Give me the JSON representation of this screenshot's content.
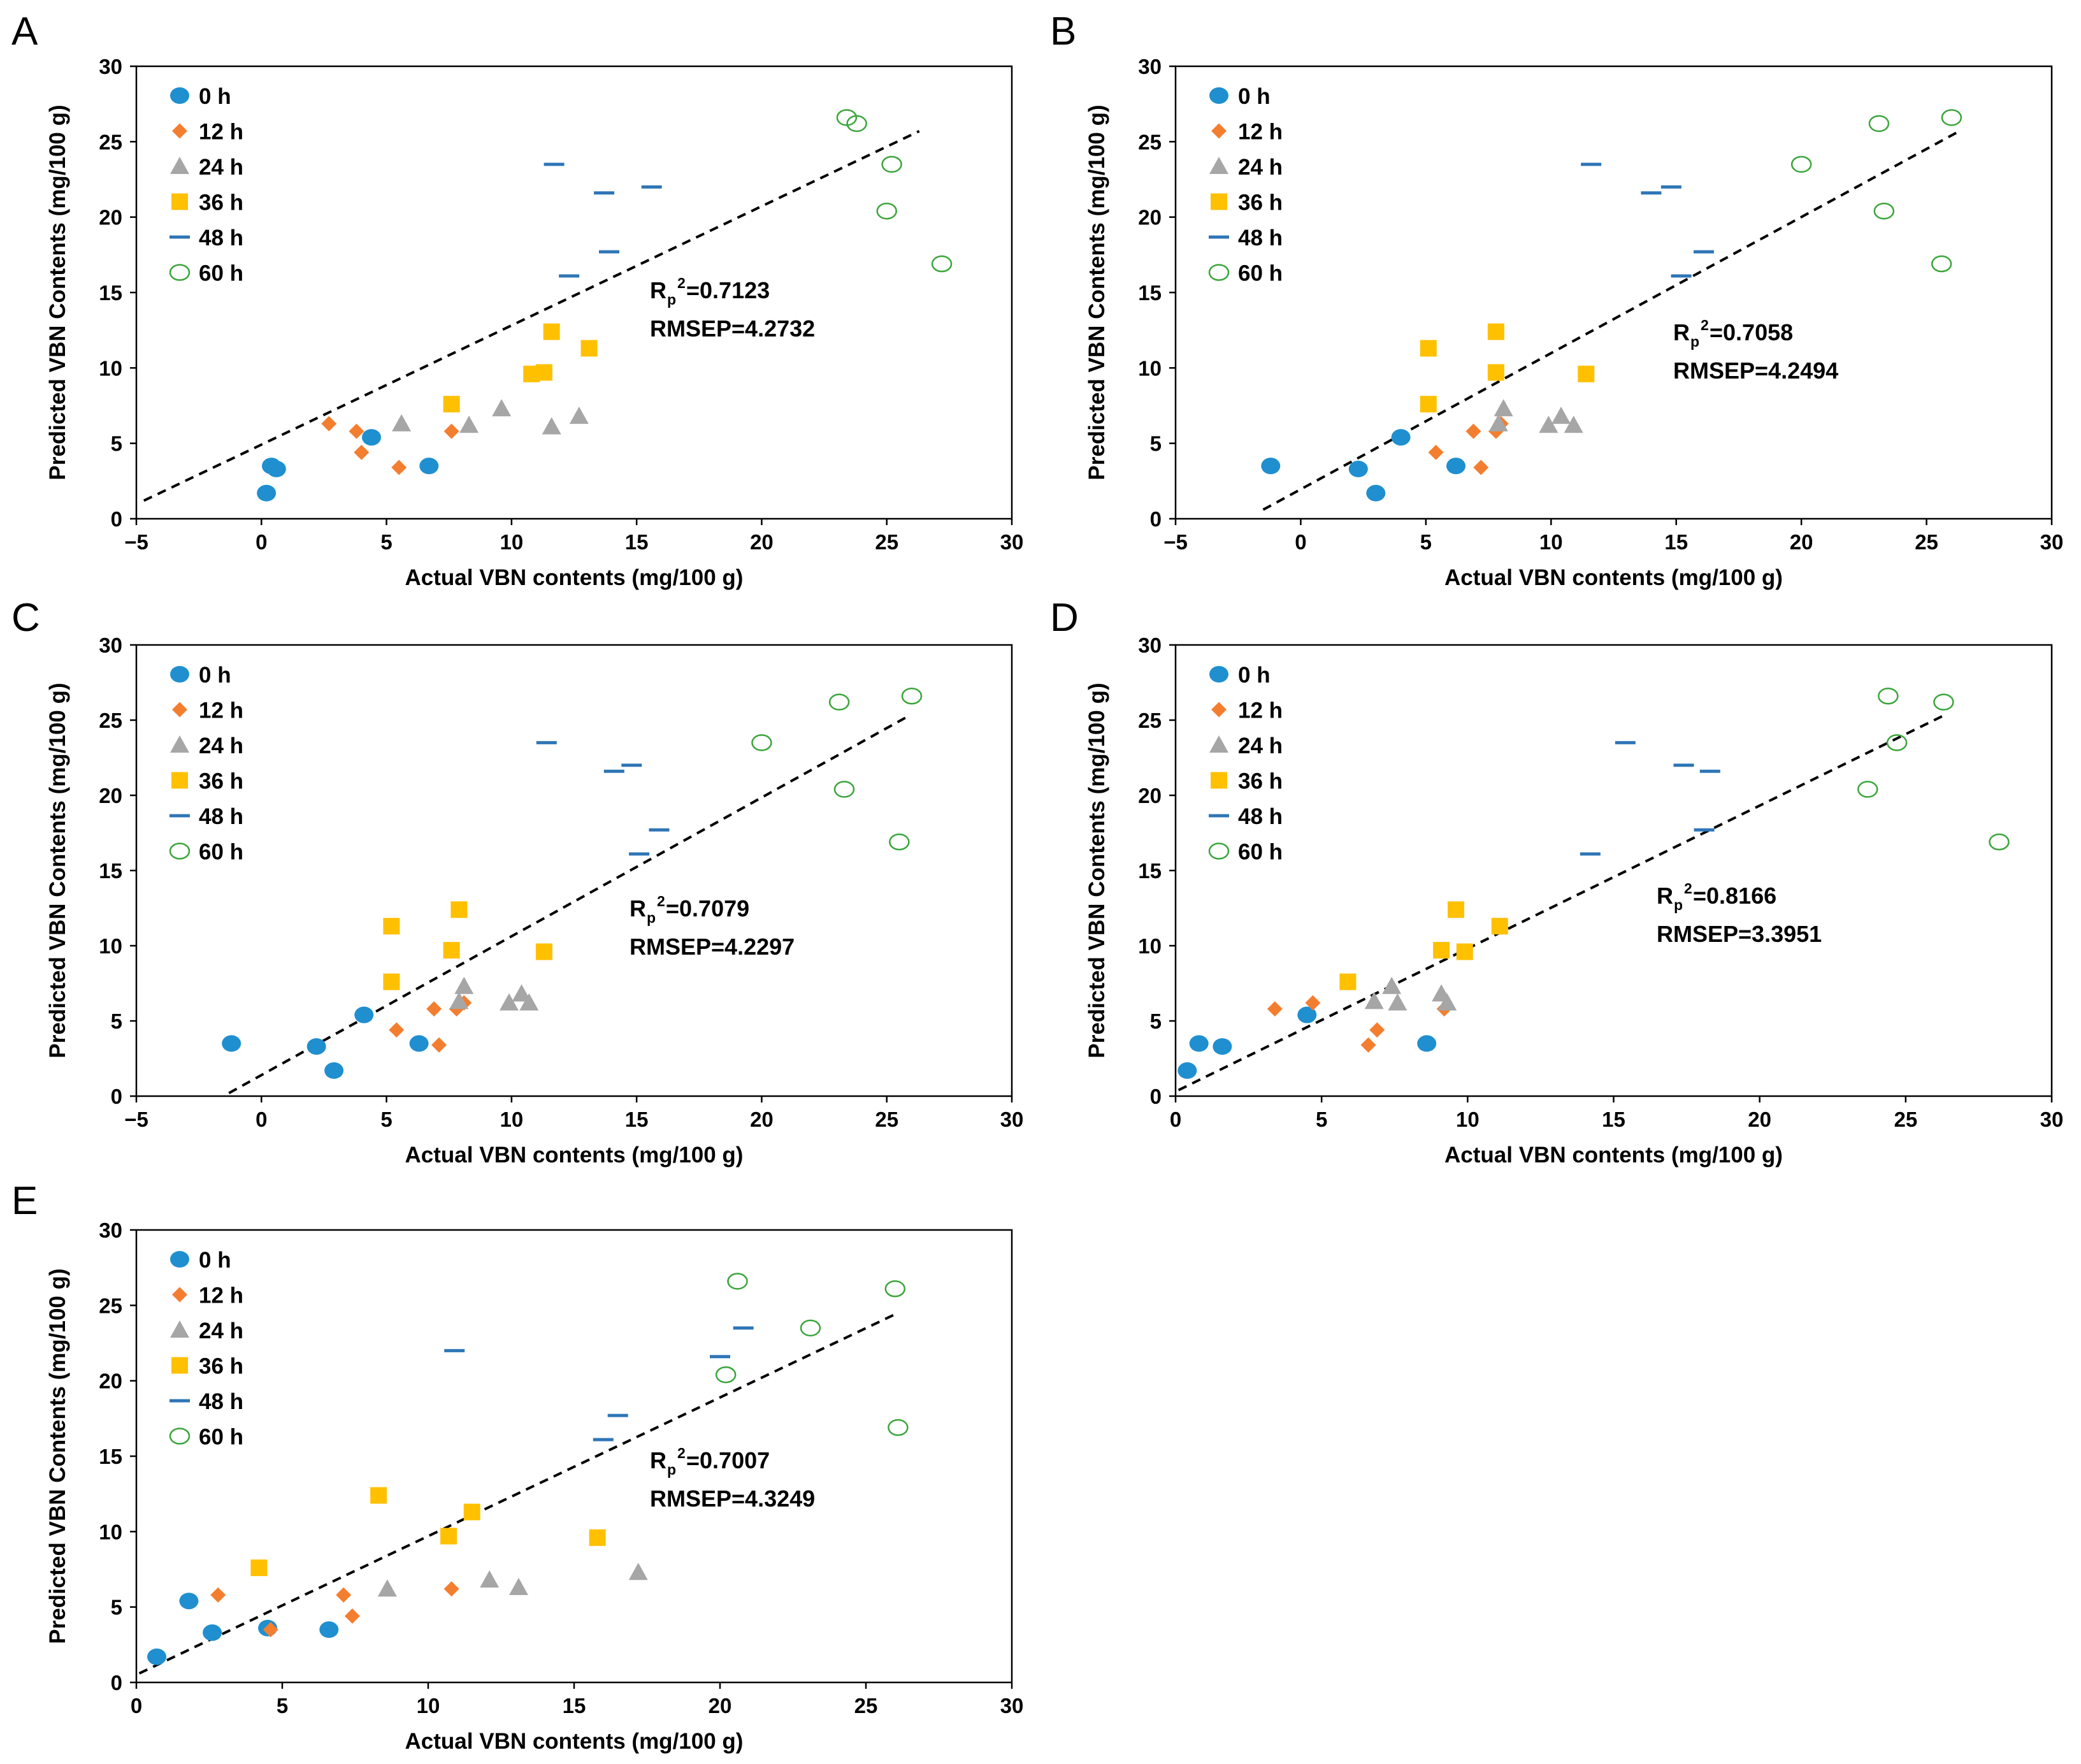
{
  "figure": {
    "colors": {
      "0 h": "#1f8fd0",
      "12 h": "#f47e30",
      "24 h": "#a6a6a6",
      "36 h": "#ffc000",
      "48 h": "#2e75b6",
      "60 h": "#3aa53a",
      "trend": "#000000",
      "axis": "#000000"
    }
  },
  "chart_data": [
    {
      "panel": "A",
      "type": "scatter",
      "xlabel": "Actual VBN contents (mg/100 g)",
      "ylabel": "Predicted VBN Contents (mg/100 g)",
      "xlim": [
        -5,
        30
      ],
      "ylim": [
        0,
        30
      ],
      "xticks": [
        "−5",
        "0",
        "5",
        "10",
        "15",
        "20",
        "25",
        "30"
      ],
      "yticks": [
        "0",
        "5",
        "10",
        "15",
        "20",
        "25",
        "30"
      ],
      "stats": {
        "r_main": "R",
        "r_sub": "p",
        "r_sup": "2",
        "r_value": "=0.7123",
        "rmsep": "RMSEP=4.2732"
      },
      "trendline": {
        "x": [
          -4.7,
          26.3
        ],
        "y": [
          1.2,
          25.7
        ]
      },
      "series": [
        {
          "name": "0 h",
          "marker": "circle",
          "points": [
            [
              0.2,
              1.7
            ],
            [
              0.4,
              3.5
            ],
            [
              0.6,
              3.3
            ],
            [
              4.4,
              5.4
            ],
            [
              6.7,
              3.5
            ]
          ]
        },
        {
          "name": "12 h",
          "marker": "diamond",
          "points": [
            [
              2.7,
              6.3
            ],
            [
              3.8,
              5.8
            ],
            [
              4.0,
              4.4
            ],
            [
              5.5,
              3.4
            ],
            [
              7.6,
              5.8
            ]
          ]
        },
        {
          "name": "24 h",
          "marker": "triangle",
          "points": [
            [
              5.6,
              6.3
            ],
            [
              8.3,
              6.2
            ],
            [
              9.6,
              7.3
            ],
            [
              11.6,
              6.1
            ],
            [
              12.7,
              6.8
            ]
          ]
        },
        {
          "name": "36 h",
          "marker": "square",
          "points": [
            [
              7.6,
              7.6
            ],
            [
              10.8,
              9.6
            ],
            [
              11.3,
              9.7
            ],
            [
              11.6,
              12.4
            ],
            [
              13.1,
              11.3
            ]
          ]
        },
        {
          "name": "48 h",
          "marker": "dash",
          "points": [
            [
              11.7,
              23.5
            ],
            [
              13.7,
              21.6
            ],
            [
              15.6,
              22.0
            ],
            [
              13.9,
              17.7
            ],
            [
              12.3,
              16.1
            ]
          ]
        },
        {
          "name": "60 h",
          "marker": "open-circle",
          "points": [
            [
              23.4,
              26.6
            ],
            [
              23.8,
              26.2
            ],
            [
              25.2,
              23.5
            ],
            [
              25.0,
              20.4
            ],
            [
              27.2,
              16.9
            ]
          ]
        }
      ]
    },
    {
      "panel": "B",
      "type": "scatter",
      "xlabel": "Actual VBN contents (mg/100 g)",
      "ylabel": "Predicted VBN Contents (mg/100 g)",
      "xlim": [
        -5,
        30
      ],
      "ylim": [
        0,
        30
      ],
      "xticks": [
        "−5",
        "0",
        "5",
        "10",
        "15",
        "20",
        "25",
        "30"
      ],
      "yticks": [
        "0",
        "5",
        "10",
        "15",
        "20",
        "25",
        "30"
      ],
      "stats": {
        "r_main": "R",
        "r_sub": "p",
        "r_sup": "2",
        "r_value": "=0.7058",
        "rmsep": "RMSEP=4.2494"
      },
      "trendline": {
        "x": [
          -1.5,
          26.2
        ],
        "y": [
          0.6,
          25.6
        ]
      },
      "series": [
        {
          "name": "0 h",
          "marker": "circle",
          "points": [
            [
              -1.2,
              3.5
            ],
            [
              2.3,
              3.3
            ],
            [
              3.0,
              1.7
            ],
            [
              4.0,
              5.4
            ],
            [
              6.2,
              3.5
            ]
          ]
        },
        {
          "name": "12 h",
          "marker": "diamond",
          "points": [
            [
              5.4,
              4.4
            ],
            [
              6.9,
              5.8
            ],
            [
              7.2,
              3.4
            ],
            [
              7.8,
              5.8
            ],
            [
              8.0,
              6.3
            ]
          ]
        },
        {
          "name": "24 h",
          "marker": "triangle",
          "points": [
            [
              8.1,
              7.3
            ],
            [
              9.9,
              6.2
            ],
            [
              10.4,
              6.8
            ],
            [
              10.9,
              6.2
            ],
            [
              7.9,
              6.3
            ]
          ]
        },
        {
          "name": "36 h",
          "marker": "square",
          "points": [
            [
              5.1,
              11.3
            ],
            [
              5.1,
              7.6
            ],
            [
              7.8,
              12.4
            ],
            [
              7.8,
              9.7
            ],
            [
              11.4,
              9.6
            ]
          ]
        },
        {
          "name": "48 h",
          "marker": "dash",
          "points": [
            [
              11.6,
              23.5
            ],
            [
              14.0,
              21.6
            ],
            [
              14.8,
              22.0
            ],
            [
              16.1,
              17.7
            ],
            [
              15.2,
              16.1
            ]
          ]
        },
        {
          "name": "60 h",
          "marker": "open-circle",
          "points": [
            [
              20.0,
              23.5
            ],
            [
              23.1,
              26.2
            ],
            [
              26.0,
              26.6
            ],
            [
              23.3,
              20.4
            ],
            [
              25.6,
              16.9
            ]
          ]
        }
      ]
    },
    {
      "panel": "C",
      "type": "scatter",
      "xlabel": "Actual VBN contents (mg/100 g)",
      "ylabel": "Predicted VBN Contents (mg/100 g)",
      "xlim": [
        -5,
        30
      ],
      "ylim": [
        0,
        30
      ],
      "xticks": [
        "−5",
        "0",
        "5",
        "10",
        "15",
        "20",
        "25",
        "30"
      ],
      "yticks": [
        "0",
        "5",
        "10",
        "15",
        "20",
        "25",
        "30"
      ],
      "stats": {
        "r_main": "R",
        "r_sub": "p",
        "r_sup": "2",
        "r_value": "=0.7079",
        "rmsep": "RMSEP=4.2297"
      },
      "trendline": {
        "x": [
          -1.3,
          25.9
        ],
        "y": [
          0.2,
          25.3
        ]
      },
      "series": [
        {
          "name": "0 h",
          "marker": "circle",
          "points": [
            [
              -1.2,
              3.5
            ],
            [
              2.2,
              3.3
            ],
            [
              2.9,
              1.7
            ],
            [
              4.1,
              5.4
            ],
            [
              6.3,
              3.5
            ]
          ]
        },
        {
          "name": "12 h",
          "marker": "diamond",
          "points": [
            [
              5.4,
              4.4
            ],
            [
              6.9,
              5.8
            ],
            [
              7.1,
              3.4
            ],
            [
              7.8,
              5.8
            ],
            [
              8.1,
              6.2
            ]
          ]
        },
        {
          "name": "24 h",
          "marker": "triangle",
          "points": [
            [
              8.1,
              7.3
            ],
            [
              9.9,
              6.2
            ],
            [
              10.4,
              6.8
            ],
            [
              10.7,
              6.2
            ],
            [
              7.9,
              6.3
            ]
          ]
        },
        {
          "name": "36 h",
          "marker": "square",
          "points": [
            [
              5.2,
              11.3
            ],
            [
              5.2,
              7.6
            ],
            [
              7.9,
              12.4
            ],
            [
              7.6,
              9.7
            ],
            [
              11.3,
              9.6
            ]
          ]
        },
        {
          "name": "48 h",
          "marker": "dash",
          "points": [
            [
              11.4,
              23.5
            ],
            [
              14.1,
              21.6
            ],
            [
              14.8,
              22.0
            ],
            [
              15.9,
              17.7
            ],
            [
              15.1,
              16.1
            ]
          ]
        },
        {
          "name": "60 h",
          "marker": "open-circle",
          "points": [
            [
              20.0,
              23.5
            ],
            [
              23.1,
              26.2
            ],
            [
              26.0,
              26.6
            ],
            [
              23.3,
              20.4
            ],
            [
              25.5,
              16.9
            ]
          ]
        }
      ]
    },
    {
      "panel": "D",
      "type": "scatter",
      "xlabel": "Actual VBN contents (mg/100 g)",
      "ylabel": "Predicted VBN Contents (mg/100 g)",
      "xlim": [
        0,
        30
      ],
      "ylim": [
        0,
        30
      ],
      "xticks": [
        "0",
        "5",
        "10",
        "15",
        "20",
        "25",
        "30"
      ],
      "yticks": [
        "0",
        "5",
        "10",
        "15",
        "20",
        "25",
        "30"
      ],
      "stats": {
        "r_main": "R",
        "r_sub": "p",
        "r_sup": "2",
        "r_value": "=0.8166",
        "rmsep": "RMSEP=3.3951"
      },
      "trendline": {
        "x": [
          0.1,
          26.4
        ],
        "y": [
          0.4,
          25.4
        ]
      },
      "series": [
        {
          "name": "0 h",
          "marker": "circle",
          "points": [
            [
              0.4,
              1.7
            ],
            [
              0.8,
              3.5
            ],
            [
              1.6,
              3.3
            ],
            [
              4.5,
              5.4
            ],
            [
              8.6,
              3.5
            ]
          ]
        },
        {
          "name": "12 h",
          "marker": "diamond",
          "points": [
            [
              3.4,
              5.8
            ],
            [
              4.7,
              6.2
            ],
            [
              6.6,
              3.4
            ],
            [
              6.9,
              4.4
            ],
            [
              9.2,
              5.8
            ]
          ]
        },
        {
          "name": "24 h",
          "marker": "triangle",
          "points": [
            [
              6.8,
              6.3
            ],
            [
              7.4,
              7.3
            ],
            [
              7.6,
              6.2
            ],
            [
              9.1,
              6.8
            ],
            [
              9.3,
              6.2
            ]
          ]
        },
        {
          "name": "36 h",
          "marker": "square",
          "points": [
            [
              5.9,
              7.6
            ],
            [
              9.1,
              9.7
            ],
            [
              9.6,
              12.4
            ],
            [
              9.9,
              9.6
            ],
            [
              11.1,
              11.3
            ]
          ]
        },
        {
          "name": "48 h",
          "marker": "dash",
          "points": [
            [
              15.4,
              23.5
            ],
            [
              17.4,
              22.0
            ],
            [
              18.3,
              21.6
            ],
            [
              18.1,
              17.7
            ],
            [
              14.2,
              16.1
            ]
          ]
        },
        {
          "name": "60 h",
          "marker": "open-circle",
          "points": [
            [
              24.4,
              26.6
            ],
            [
              26.3,
              26.2
            ],
            [
              24.7,
              23.5
            ],
            [
              23.7,
              20.4
            ],
            [
              28.2,
              16.9
            ]
          ]
        }
      ]
    },
    {
      "panel": "E",
      "type": "scatter",
      "xlabel": "Actual VBN contents (mg/100 g)",
      "ylabel": "Predicted VBN Contents (mg/100 g)",
      "xlim": [
        0,
        30
      ],
      "ylim": [
        0,
        30
      ],
      "xticks": [
        "0",
        "5",
        "10",
        "15",
        "20",
        "25",
        "30"
      ],
      "yticks": [
        "0",
        "5",
        "10",
        "15",
        "20",
        "25",
        "30"
      ],
      "stats": {
        "r_main": "R",
        "r_sub": "p",
        "r_sup": "2",
        "r_value": "=0.7007",
        "rmsep": "RMSEP=4.3249"
      },
      "trendline": {
        "x": [
          0.1,
          26.1
        ],
        "y": [
          0.6,
          24.5
        ]
      },
      "series": [
        {
          "name": "0 h",
          "marker": "circle",
          "points": [
            [
              0.7,
              1.7
            ],
            [
              1.8,
              5.4
            ],
            [
              2.6,
              3.3
            ],
            [
              4.5,
              3.6
            ],
            [
              6.6,
              3.5
            ]
          ]
        },
        {
          "name": "12 h",
          "marker": "diamond",
          "points": [
            [
              2.8,
              5.8
            ],
            [
              4.6,
              3.5
            ],
            [
              7.1,
              5.8
            ],
            [
              7.4,
              4.4
            ],
            [
              10.8,
              6.2
            ]
          ]
        },
        {
          "name": "24 h",
          "marker": "triangle",
          "points": [
            [
              8.6,
              6.2
            ],
            [
              12.1,
              6.8
            ],
            [
              13.1,
              6.3
            ],
            [
              17.2,
              7.3
            ]
          ]
        },
        {
          "name": "36 h",
          "marker": "square",
          "points": [
            [
              4.2,
              7.6
            ],
            [
              8.3,
              12.4
            ],
            [
              10.7,
              9.7
            ],
            [
              11.5,
              11.3
            ],
            [
              15.8,
              9.6
            ]
          ]
        },
        {
          "name": "48 h",
          "marker": "dash",
          "points": [
            [
              10.9,
              22.0
            ],
            [
              16.5,
              17.7
            ],
            [
              16.0,
              16.1
            ],
            [
              20.0,
              21.6
            ],
            [
              20.8,
              23.5
            ]
          ]
        },
        {
          "name": "60 h",
          "marker": "open-circle",
          "points": [
            [
              20.6,
              26.6
            ],
            [
              26.0,
              26.1
            ],
            [
              23.1,
              23.5
            ],
            [
              20.2,
              20.4
            ],
            [
              26.1,
              16.9
            ]
          ]
        }
      ]
    }
  ]
}
